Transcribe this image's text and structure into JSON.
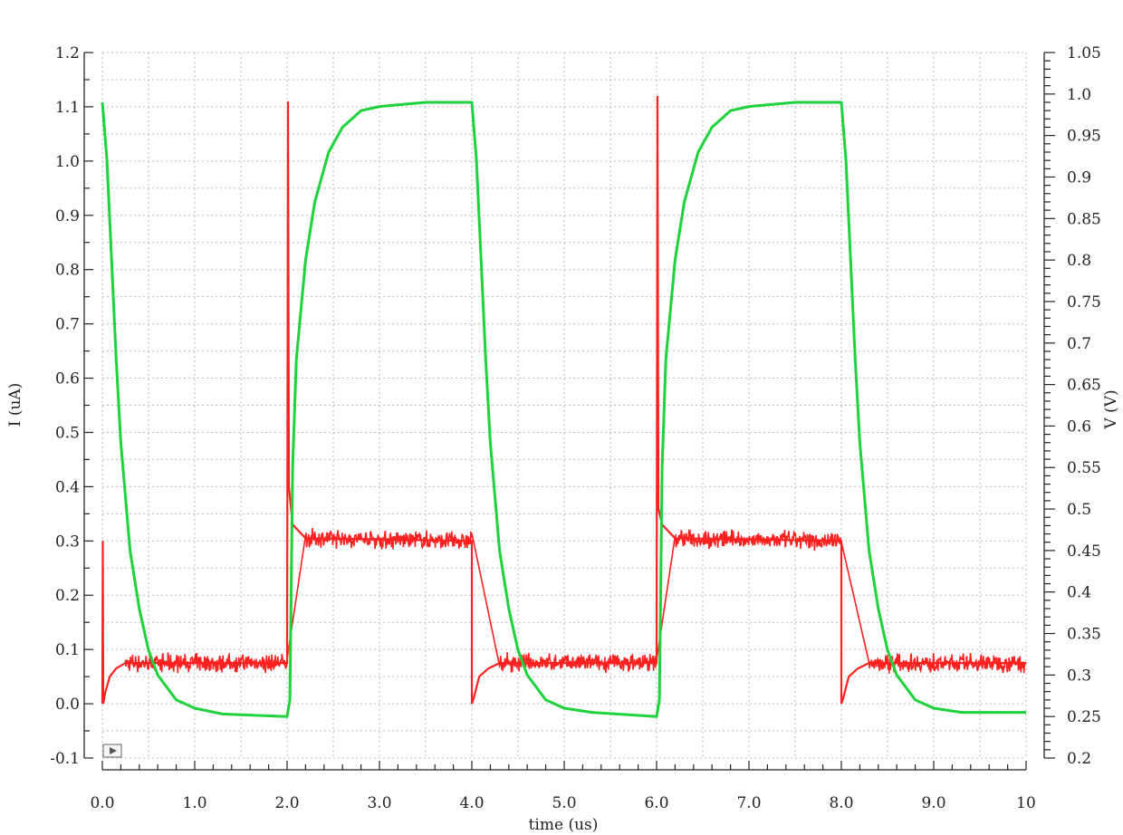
{
  "chart_data": {
    "type": "line",
    "xlabel": "time (us)",
    "ylabel": "I (uA)",
    "y2label": "V (V)",
    "xlim": [
      0,
      10
    ],
    "ylim": [
      -0.1,
      1.2
    ],
    "y2lim": [
      0.2,
      1.05
    ],
    "grid": true,
    "x_ticks": [
      "0.0",
      "1.0",
      "2.0",
      "3.0",
      "4.0",
      "5.0",
      "6.0",
      "7.0",
      "8.0",
      "9.0",
      "10"
    ],
    "y_ticks": [
      "-0.1",
      "0.0",
      "0.1",
      "0.2",
      "0.3",
      "0.4",
      "0.5",
      "0.6",
      "0.7",
      "0.8",
      "0.9",
      "1.0",
      "1.1",
      "1.2"
    ],
    "y2_ticks": [
      "0.2",
      "0.25",
      "0.3",
      "0.35",
      "0.4",
      "0.45",
      "0.5",
      "0.55",
      "0.6",
      "0.65",
      "0.7",
      "0.75",
      "0.8",
      "0.85",
      "0.9",
      "0.95",
      "1.0",
      "1.05"
    ],
    "series": [
      {
        "axis": "left",
        "color": "#ff2020",
        "noise_band": 0.04,
        "points": [
          [
            0.0,
            0.0
          ],
          [
            0.005,
            0.3
          ],
          [
            0.01,
            0.0
          ],
          [
            0.03,
            0.02
          ],
          [
            0.08,
            0.05
          ],
          [
            0.15,
            0.065
          ],
          [
            0.25,
            0.075
          ],
          [
            2.0,
            0.075
          ],
          [
            2.01,
            1.11
          ],
          [
            2.02,
            0.4
          ],
          [
            2.06,
            0.33
          ],
          [
            2.2,
            0.305
          ],
          [
            4.0,
            0.3
          ],
          [
            4.0,
            0.0
          ],
          [
            4.02,
            0.01
          ],
          [
            4.08,
            0.05
          ],
          [
            4.18,
            0.065
          ],
          [
            4.3,
            0.075
          ],
          [
            6.0,
            0.075
          ],
          [
            6.01,
            1.12
          ],
          [
            6.02,
            0.36
          ],
          [
            6.06,
            0.33
          ],
          [
            6.2,
            0.305
          ],
          [
            8.0,
            0.3
          ],
          [
            8.0,
            0.0
          ],
          [
            8.02,
            0.01
          ],
          [
            8.08,
            0.05
          ],
          [
            8.18,
            0.065
          ],
          [
            8.3,
            0.075
          ],
          [
            10.0,
            0.075
          ]
        ]
      },
      {
        "axis": "right",
        "color": "#1ed23c",
        "points": [
          [
            0.0,
            0.99
          ],
          [
            0.05,
            0.92
          ],
          [
            0.1,
            0.8
          ],
          [
            0.15,
            0.68
          ],
          [
            0.2,
            0.58
          ],
          [
            0.3,
            0.45
          ],
          [
            0.4,
            0.38
          ],
          [
            0.5,
            0.33
          ],
          [
            0.6,
            0.3
          ],
          [
            0.8,
            0.27
          ],
          [
            1.0,
            0.26
          ],
          [
            1.3,
            0.253
          ],
          [
            2.0,
            0.25
          ],
          [
            2.03,
            0.27
          ],
          [
            2.06,
            0.55
          ],
          [
            2.1,
            0.68
          ],
          [
            2.2,
            0.8
          ],
          [
            2.3,
            0.87
          ],
          [
            2.45,
            0.93
          ],
          [
            2.6,
            0.96
          ],
          [
            2.8,
            0.98
          ],
          [
            3.0,
            0.985
          ],
          [
            3.5,
            0.99
          ],
          [
            4.0,
            0.99
          ],
          [
            4.05,
            0.92
          ],
          [
            4.1,
            0.8
          ],
          [
            4.15,
            0.68
          ],
          [
            4.2,
            0.58
          ],
          [
            4.3,
            0.45
          ],
          [
            4.4,
            0.38
          ],
          [
            4.5,
            0.33
          ],
          [
            4.6,
            0.3
          ],
          [
            4.8,
            0.27
          ],
          [
            5.0,
            0.26
          ],
          [
            5.3,
            0.255
          ],
          [
            6.0,
            0.25
          ],
          [
            6.03,
            0.27
          ],
          [
            6.06,
            0.55
          ],
          [
            6.1,
            0.68
          ],
          [
            6.2,
            0.8
          ],
          [
            6.3,
            0.87
          ],
          [
            6.45,
            0.93
          ],
          [
            6.6,
            0.96
          ],
          [
            6.8,
            0.98
          ],
          [
            7.0,
            0.985
          ],
          [
            7.5,
            0.99
          ],
          [
            8.0,
            0.99
          ],
          [
            8.05,
            0.92
          ],
          [
            8.1,
            0.8
          ],
          [
            8.15,
            0.68
          ],
          [
            8.2,
            0.58
          ],
          [
            8.3,
            0.45
          ],
          [
            8.4,
            0.38
          ],
          [
            8.5,
            0.33
          ],
          [
            8.6,
            0.3
          ],
          [
            8.8,
            0.27
          ],
          [
            9.0,
            0.26
          ],
          [
            9.3,
            0.255
          ],
          [
            10.0,
            0.255
          ]
        ]
      }
    ]
  }
}
